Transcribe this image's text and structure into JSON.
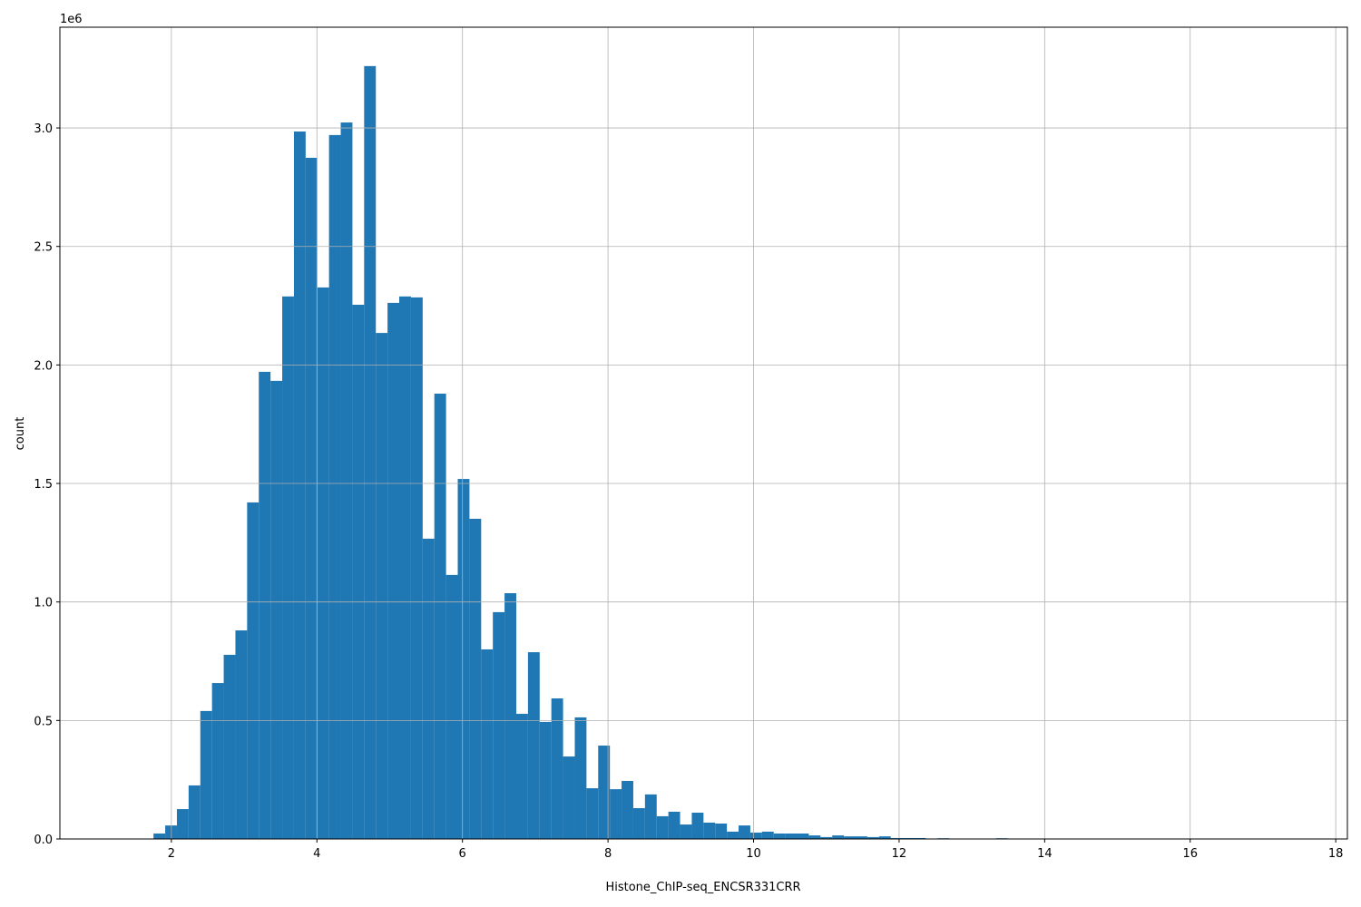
{
  "chart_data": {
    "type": "histogram",
    "x_label": "Histone_ChIP-seq_ENCSR331CRR",
    "y_label": "count",
    "y_offset_label": "1e6",
    "color": "#1f77b4",
    "grid": true,
    "bins": [
      1.272,
      1.4328,
      1.5936,
      1.7544,
      1.9152,
      2.076,
      2.2368,
      2.3976,
      2.5584,
      2.7192,
      2.88,
      3.0408,
      3.2016,
      3.3624,
      3.5232,
      3.684,
      3.8448,
      4.0056,
      4.1664,
      4.3272,
      4.488,
      4.6488,
      4.8096,
      4.9704,
      5.1312,
      5.292,
      5.4528,
      5.6136,
      5.7744,
      5.9352,
      6.096,
      6.2568,
      6.4176,
      6.5784,
      6.7392,
      6.9,
      7.0608,
      7.2216,
      7.3824,
      7.5432,
      7.704,
      7.8648,
      8.0256,
      8.1864,
      8.3472,
      8.508,
      8.6688,
      8.8296,
      8.9904,
      9.1512,
      9.312,
      9.4728,
      9.6336,
      9.7944,
      9.9552,
      10.116,
      10.2768,
      10.4376,
      10.5984,
      10.7592,
      10.92,
      11.0808,
      11.2416,
      11.4024,
      11.5632,
      11.724,
      11.8848,
      12.0456,
      12.2064,
      12.3672,
      12.528,
      12.6888,
      12.8496,
      13.0104,
      13.1712,
      13.332,
      13.4928,
      13.6536,
      13.8144,
      13.9752,
      14.136,
      14.2968,
      14.4576,
      14.6184,
      14.7792,
      14.94,
      15.1008,
      15.2616,
      15.4224,
      15.5832,
      15.744,
      15.9048,
      16.0656,
      16.2264,
      16.3872,
      16.548,
      16.7088,
      16.8696,
      17.0304,
      17.1912,
      17.352
    ],
    "counts": [
      0,
      0,
      0,
      23000,
      57000,
      126000,
      226000,
      540000,
      658000,
      777000,
      880000,
      1420000,
      1971000,
      1933000,
      2289000,
      2985000,
      2874000,
      2327000,
      2970000,
      3023000,
      2254000,
      3261000,
      2135000,
      2262000,
      2289000,
      2285000,
      1267000,
      1879000,
      1114000,
      1519000,
      1351000,
      800000,
      957000,
      1037000,
      528000,
      788000,
      494000,
      593000,
      348000,
      513000,
      214000,
      394000,
      210000,
      245000,
      130000,
      188000,
      96000,
      115000,
      61000,
      111000,
      69000,
      65000,
      31000,
      57000,
      27000,
      31000,
      23000,
      23000,
      23000,
      15000,
      8000,
      15000,
      11000,
      11000,
      8000,
      11000,
      4000,
      4000,
      4000,
      1000,
      3000,
      1000,
      1000,
      1000,
      1000,
      3000,
      0,
      0,
      0,
      0,
      0,
      0,
      0,
      0,
      0,
      0,
      0,
      0,
      0,
      0,
      0,
      0,
      0,
      0,
      0,
      0,
      0,
      0,
      0,
      1
    ],
    "xlim": [
      0.468,
      18.16
    ],
    "xticks": [
      2,
      4,
      6,
      8,
      10,
      12,
      14,
      16,
      18
    ],
    "ylim": [
      0,
      3425000
    ],
    "yticks": [
      {
        "value": 0,
        "label": "0.0"
      },
      {
        "value": 500000,
        "label": "0.5"
      },
      {
        "value": 1000000,
        "label": "1.0"
      },
      {
        "value": 1500000,
        "label": "1.5"
      },
      {
        "value": 2000000,
        "label": "2.0"
      },
      {
        "value": 2500000,
        "label": "2.5"
      },
      {
        "value": 3000000,
        "label": "3.0"
      }
    ]
  }
}
